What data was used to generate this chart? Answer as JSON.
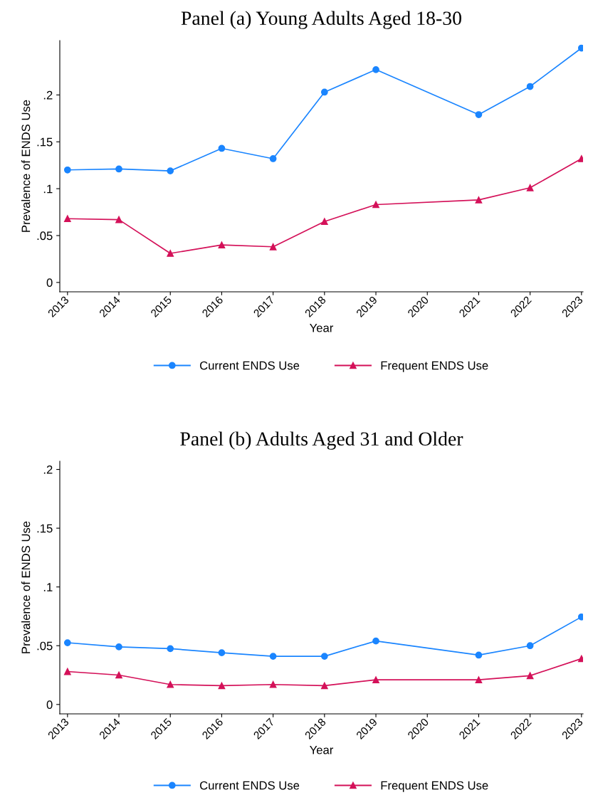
{
  "chart_data": [
    {
      "type": "line",
      "title": "Panel (a) Young Adults Aged 18-30",
      "xlabel": "Year",
      "ylabel": "Prevalence of ENDS Use",
      "x": [
        2013,
        2014,
        2015,
        2016,
        2017,
        2018,
        2019,
        2021,
        2022,
        2023
      ],
      "series": [
        {
          "name": "Current ENDS Use",
          "color": "#1a85ff",
          "marker": "circle",
          "values": [
            0.12,
            0.121,
            0.119,
            0.143,
            0.132,
            0.203,
            0.227,
            0.179,
            0.209,
            0.25
          ]
        },
        {
          "name": "Frequent ENDS Use",
          "color": "#d41159",
          "marker": "triangle",
          "values": [
            0.068,
            0.067,
            0.031,
            0.04,
            0.038,
            0.065,
            0.083,
            0.088,
            0.101,
            0.132
          ]
        }
      ],
      "xlim": [
        2012.85,
        2023.03
      ],
      "xticks": [
        2013,
        2014,
        2015,
        2016,
        2017,
        2018,
        2019,
        2020,
        2021,
        2022,
        2023
      ],
      "ylim": [
        -0.01,
        0.258
      ],
      "yticks": [
        0,
        {
          "value": 0.05,
          "label": ".05"
        },
        {
          "value": 0.1,
          "label": ".1"
        },
        {
          "value": 0.15,
          "label": ".15"
        },
        {
          "value": 0.2,
          "label": ".2"
        }
      ],
      "grid": false,
      "legend": "bottom",
      "line_style": "solid"
    },
    {
      "type": "line",
      "title": "Panel (b) Adults Aged 31 and Older",
      "xlabel": "Year",
      "ylabel": "Prevalence of ENDS Use",
      "x": [
        2013,
        2014,
        2015,
        2016,
        2017,
        2018,
        2019,
        2021,
        2022,
        2023
      ],
      "series": [
        {
          "name": "Current ENDS Use",
          "color": "#1a85ff",
          "marker": "circle",
          "values": [
            0.0525,
            0.049,
            0.0475,
            0.044,
            0.041,
            0.041,
            0.054,
            0.042,
            0.05,
            0.0745
          ]
        },
        {
          "name": "Frequent ENDS Use",
          "color": "#d41159",
          "marker": "triangle",
          "values": [
            0.028,
            0.025,
            0.017,
            0.016,
            0.017,
            0.016,
            0.021,
            0.021,
            0.0245,
            0.039
          ]
        }
      ],
      "xlim": [
        2012.85,
        2023.03
      ],
      "xticks": [
        2013,
        2014,
        2015,
        2016,
        2017,
        2018,
        2019,
        2020,
        2021,
        2022,
        2023
      ],
      "ylim": [
        -0.008,
        0.207
      ],
      "yticks": [
        0,
        {
          "value": 0.05,
          "label": ".05"
        },
        {
          "value": 0.1,
          "label": ".1"
        },
        {
          "value": 0.15,
          "label": ".15"
        },
        {
          "value": 0.2,
          "label": ".2"
        }
      ],
      "grid": false,
      "legend": "bottom",
      "line_style": "solid"
    }
  ]
}
